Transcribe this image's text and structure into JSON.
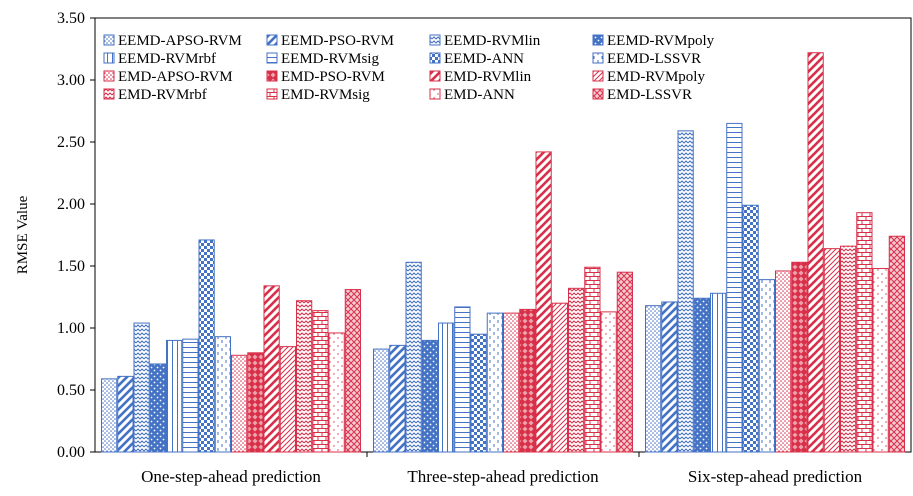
{
  "chart_data": {
    "type": "bar",
    "title": "",
    "xlabel": "",
    "ylabel": "RMSE Value",
    "ylim": [
      0,
      3.5
    ],
    "yticks": [
      "0.00",
      "0.50",
      "1.00",
      "1.50",
      "2.00",
      "2.50",
      "3.00",
      "3.50"
    ],
    "grid": false,
    "legend_position": "top-left",
    "categories": [
      "One-step-ahead prediction",
      "Three-step-ahead prediction",
      "Six-step-ahead prediction"
    ],
    "series": [
      {
        "name": "EEMD-APSO-RVM",
        "values": [
          0.59,
          0.83,
          1.18
        ],
        "color": "#4472c4",
        "pattern": "dots"
      },
      {
        "name": "EEMD-PSO-RVM",
        "values": [
          0.61,
          0.86,
          1.21
        ],
        "color": "#4472c4",
        "pattern": "wide-diag"
      },
      {
        "name": "EEMD-RVMlin",
        "values": [
          1.04,
          1.53,
          2.59
        ],
        "color": "#4472c4",
        "pattern": "zigzag"
      },
      {
        "name": "EEMD-RVMpoly",
        "values": [
          0.71,
          0.9,
          1.24
        ],
        "color": "#4472c4",
        "pattern": "solid-dots"
      },
      {
        "name": "EEMD-RVMrbf",
        "values": [
          0.9,
          1.04,
          1.28
        ],
        "color": "#4472c4",
        "pattern": "vlines"
      },
      {
        "name": "EEMD-RVMsig",
        "values": [
          0.91,
          1.17,
          2.65
        ],
        "color": "#4472c4",
        "pattern": "hlines"
      },
      {
        "name": "EEMD-ANN",
        "values": [
          1.71,
          0.95,
          1.99
        ],
        "color": "#4472c4",
        "pattern": "checker"
      },
      {
        "name": "EEMD-LSSVR",
        "values": [
          0.93,
          1.12,
          1.39
        ],
        "color": "#4472c4",
        "pattern": "dashed-v"
      },
      {
        "name": "EMD-APSO-RVM",
        "values": [
          0.78,
          1.12,
          1.46
        ],
        "color": "#d9304a",
        "pattern": "dots"
      },
      {
        "name": "EMD-PSO-RVM",
        "values": [
          0.8,
          1.15,
          1.53
        ],
        "color": "#d9304a",
        "pattern": "diamond"
      },
      {
        "name": "EMD-RVMlin",
        "values": [
          1.34,
          2.42,
          3.22
        ],
        "color": "#d9304a",
        "pattern": "wide-diag"
      },
      {
        "name": "EMD-RVMpoly",
        "values": [
          0.85,
          1.2,
          1.64
        ],
        "color": "#d9304a",
        "pattern": "small-diag"
      },
      {
        "name": "EMD-RVMrbf",
        "values": [
          1.22,
          1.32,
          1.66
        ],
        "color": "#d9304a",
        "pattern": "zigzag"
      },
      {
        "name": "EMD-RVMsig",
        "values": [
          1.14,
          1.49,
          1.93
        ],
        "color": "#d9304a",
        "pattern": "brick"
      },
      {
        "name": "EMD-ANN",
        "values": [
          0.96,
          1.13,
          1.48
        ],
        "color": "#d9304a",
        "pattern": "sparse-dots"
      },
      {
        "name": "EMD-LSSVR",
        "values": [
          1.31,
          1.45,
          1.74
        ],
        "color": "#d9304a",
        "pattern": "small-checker"
      }
    ]
  }
}
